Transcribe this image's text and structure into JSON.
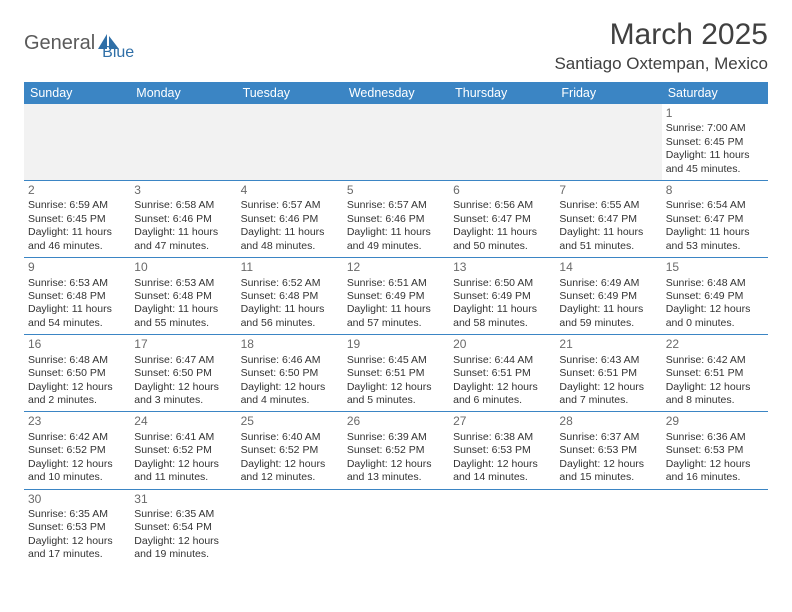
{
  "brand": {
    "part1": "General",
    "part2": "Blue"
  },
  "title": "March 2025",
  "location": "Santiago Oxtempan, Mexico",
  "colors": {
    "header_bg": "#3b85c4",
    "header_text": "#ffffff",
    "row_divider": "#3b85c4",
    "blank_bg": "#f2f2f2",
    "body_text": "#333333",
    "daynum_text": "#6a6a6a",
    "logo_general": "#5a5a5a",
    "logo_blue": "#2f6fa7"
  },
  "typography": {
    "title_fontsize": 30,
    "location_fontsize": 17,
    "header_cell_fontsize": 12.5,
    "cell_fontsize": 10.5,
    "daynum_fontsize": 12
  },
  "weekdays": [
    "Sunday",
    "Monday",
    "Tuesday",
    "Wednesday",
    "Thursday",
    "Friday",
    "Saturday"
  ],
  "weeks": [
    [
      null,
      null,
      null,
      null,
      null,
      null,
      {
        "day": "1",
        "sunrise": "Sunrise: 7:00 AM",
        "sunset": "Sunset: 6:45 PM",
        "daylight": "Daylight: 11 hours and 45 minutes."
      }
    ],
    [
      {
        "day": "2",
        "sunrise": "Sunrise: 6:59 AM",
        "sunset": "Sunset: 6:45 PM",
        "daylight": "Daylight: 11 hours and 46 minutes."
      },
      {
        "day": "3",
        "sunrise": "Sunrise: 6:58 AM",
        "sunset": "Sunset: 6:46 PM",
        "daylight": "Daylight: 11 hours and 47 minutes."
      },
      {
        "day": "4",
        "sunrise": "Sunrise: 6:57 AM",
        "sunset": "Sunset: 6:46 PM",
        "daylight": "Daylight: 11 hours and 48 minutes."
      },
      {
        "day": "5",
        "sunrise": "Sunrise: 6:57 AM",
        "sunset": "Sunset: 6:46 PM",
        "daylight": "Daylight: 11 hours and 49 minutes."
      },
      {
        "day": "6",
        "sunrise": "Sunrise: 6:56 AM",
        "sunset": "Sunset: 6:47 PM",
        "daylight": "Daylight: 11 hours and 50 minutes."
      },
      {
        "day": "7",
        "sunrise": "Sunrise: 6:55 AM",
        "sunset": "Sunset: 6:47 PM",
        "daylight": "Daylight: 11 hours and 51 minutes."
      },
      {
        "day": "8",
        "sunrise": "Sunrise: 6:54 AM",
        "sunset": "Sunset: 6:47 PM",
        "daylight": "Daylight: 11 hours and 53 minutes."
      }
    ],
    [
      {
        "day": "9",
        "sunrise": "Sunrise: 6:53 AM",
        "sunset": "Sunset: 6:48 PM",
        "daylight": "Daylight: 11 hours and 54 minutes."
      },
      {
        "day": "10",
        "sunrise": "Sunrise: 6:53 AM",
        "sunset": "Sunset: 6:48 PM",
        "daylight": "Daylight: 11 hours and 55 minutes."
      },
      {
        "day": "11",
        "sunrise": "Sunrise: 6:52 AM",
        "sunset": "Sunset: 6:48 PM",
        "daylight": "Daylight: 11 hours and 56 minutes."
      },
      {
        "day": "12",
        "sunrise": "Sunrise: 6:51 AM",
        "sunset": "Sunset: 6:49 PM",
        "daylight": "Daylight: 11 hours and 57 minutes."
      },
      {
        "day": "13",
        "sunrise": "Sunrise: 6:50 AM",
        "sunset": "Sunset: 6:49 PM",
        "daylight": "Daylight: 11 hours and 58 minutes."
      },
      {
        "day": "14",
        "sunrise": "Sunrise: 6:49 AM",
        "sunset": "Sunset: 6:49 PM",
        "daylight": "Daylight: 11 hours and 59 minutes."
      },
      {
        "day": "15",
        "sunrise": "Sunrise: 6:48 AM",
        "sunset": "Sunset: 6:49 PM",
        "daylight": "Daylight: 12 hours and 0 minutes."
      }
    ],
    [
      {
        "day": "16",
        "sunrise": "Sunrise: 6:48 AM",
        "sunset": "Sunset: 6:50 PM",
        "daylight": "Daylight: 12 hours and 2 minutes."
      },
      {
        "day": "17",
        "sunrise": "Sunrise: 6:47 AM",
        "sunset": "Sunset: 6:50 PM",
        "daylight": "Daylight: 12 hours and 3 minutes."
      },
      {
        "day": "18",
        "sunrise": "Sunrise: 6:46 AM",
        "sunset": "Sunset: 6:50 PM",
        "daylight": "Daylight: 12 hours and 4 minutes."
      },
      {
        "day": "19",
        "sunrise": "Sunrise: 6:45 AM",
        "sunset": "Sunset: 6:51 PM",
        "daylight": "Daylight: 12 hours and 5 minutes."
      },
      {
        "day": "20",
        "sunrise": "Sunrise: 6:44 AM",
        "sunset": "Sunset: 6:51 PM",
        "daylight": "Daylight: 12 hours and 6 minutes."
      },
      {
        "day": "21",
        "sunrise": "Sunrise: 6:43 AM",
        "sunset": "Sunset: 6:51 PM",
        "daylight": "Daylight: 12 hours and 7 minutes."
      },
      {
        "day": "22",
        "sunrise": "Sunrise: 6:42 AM",
        "sunset": "Sunset: 6:51 PM",
        "daylight": "Daylight: 12 hours and 8 minutes."
      }
    ],
    [
      {
        "day": "23",
        "sunrise": "Sunrise: 6:42 AM",
        "sunset": "Sunset: 6:52 PM",
        "daylight": "Daylight: 12 hours and 10 minutes."
      },
      {
        "day": "24",
        "sunrise": "Sunrise: 6:41 AM",
        "sunset": "Sunset: 6:52 PM",
        "daylight": "Daylight: 12 hours and 11 minutes."
      },
      {
        "day": "25",
        "sunrise": "Sunrise: 6:40 AM",
        "sunset": "Sunset: 6:52 PM",
        "daylight": "Daylight: 12 hours and 12 minutes."
      },
      {
        "day": "26",
        "sunrise": "Sunrise: 6:39 AM",
        "sunset": "Sunset: 6:52 PM",
        "daylight": "Daylight: 12 hours and 13 minutes."
      },
      {
        "day": "27",
        "sunrise": "Sunrise: 6:38 AM",
        "sunset": "Sunset: 6:53 PM",
        "daylight": "Daylight: 12 hours and 14 minutes."
      },
      {
        "day": "28",
        "sunrise": "Sunrise: 6:37 AM",
        "sunset": "Sunset: 6:53 PM",
        "daylight": "Daylight: 12 hours and 15 minutes."
      },
      {
        "day": "29",
        "sunrise": "Sunrise: 6:36 AM",
        "sunset": "Sunset: 6:53 PM",
        "daylight": "Daylight: 12 hours and 16 minutes."
      }
    ],
    [
      {
        "day": "30",
        "sunrise": "Sunrise: 6:35 AM",
        "sunset": "Sunset: 6:53 PM",
        "daylight": "Daylight: 12 hours and 17 minutes."
      },
      {
        "day": "31",
        "sunrise": "Sunrise: 6:35 AM",
        "sunset": "Sunset: 6:54 PM",
        "daylight": "Daylight: 12 hours and 19 minutes."
      },
      null,
      null,
      null,
      null,
      null
    ]
  ]
}
